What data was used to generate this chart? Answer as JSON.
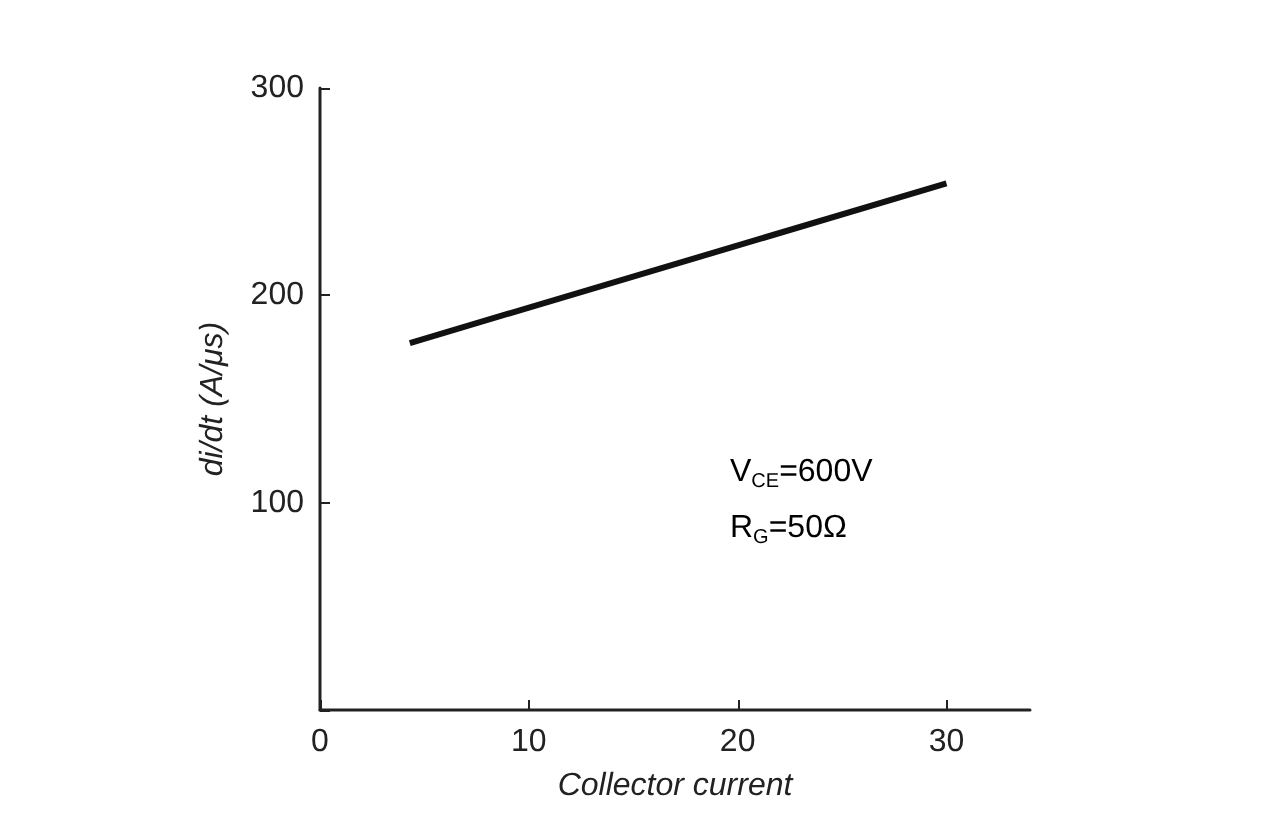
{
  "chart_data": {
    "type": "line",
    "xlabel": "Collector current",
    "ylabel": "di/dt (A/μs)",
    "x": [
      4.3,
      30
    ],
    "series": [
      {
        "color": "#111111",
        "values": [
          177,
          254
        ]
      }
    ],
    "xlim": [
      0,
      34
    ],
    "xticks": [
      0,
      10,
      20,
      30
    ],
    "ylim": [
      0,
      300
    ],
    "yticks": [
      {
        "value": 0,
        "label": null
      },
      100,
      200,
      300
    ],
    "grid": false,
    "marker": "none",
    "line_style": "solid",
    "annotations": [
      "V$_{CE}$=600V",
      "R$_{G}$=50Ω"
    ]
  }
}
